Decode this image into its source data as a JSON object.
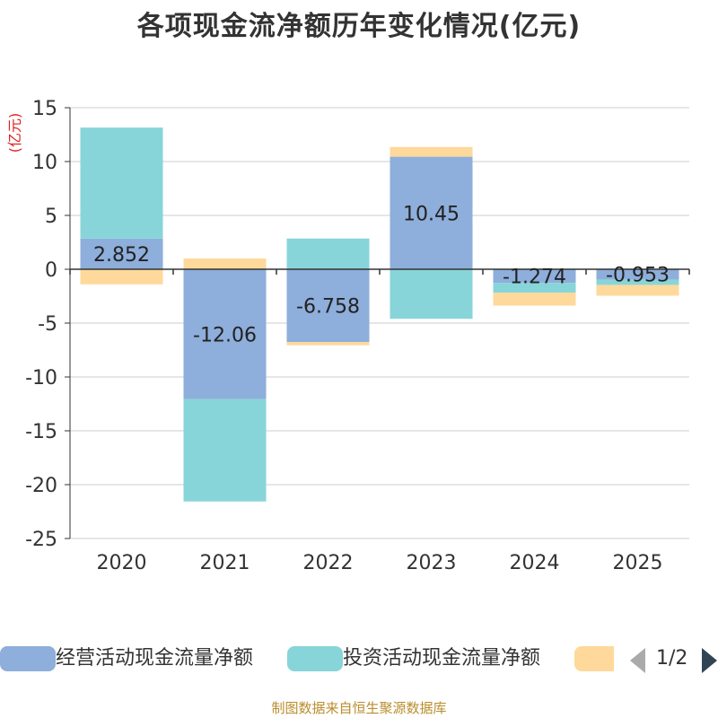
{
  "chart_data": {
    "type": "bar",
    "stacked": true,
    "title": "各项现金流净额历年变化情况(亿元)",
    "ylabel": "(亿元)",
    "xlabel": "",
    "ylim": [
      -25,
      15
    ],
    "yticks": [
      15,
      10,
      5,
      0,
      -5,
      -10,
      -15,
      -20,
      -25
    ],
    "categories": [
      "2020",
      "2021",
      "2022",
      "2023",
      "2024",
      "2025"
    ],
    "series": [
      {
        "name": "经营活动现金流量净额",
        "color": "#8eaedb",
        "values": [
          2.852,
          -12.06,
          -6.758,
          10.45,
          -1.274,
          -0.953
        ],
        "labels": [
          "2.852",
          "-12.06",
          "-6.758",
          "10.45",
          "-1.274",
          "-0.953"
        ]
      },
      {
        "name": "投资活动现金流量净额",
        "color": "#87d5d9",
        "values": [
          10.3,
          -9.5,
          2.85,
          -4.6,
          -0.9,
          -0.5
        ]
      },
      {
        "name": "",
        "color": "#fed99b",
        "values": [
          -1.4,
          1.0,
          -0.3,
          0.9,
          -1.2,
          -1.0
        ]
      }
    ],
    "legend_position": "bottom",
    "grid": true
  },
  "legend": {
    "items": [
      {
        "label": "经营活动现金流量净额",
        "color": "#8eaedb"
      },
      {
        "label": "投资活动现金流量净额",
        "color": "#87d5d9"
      },
      {
        "label": "",
        "color": "#fed99b"
      }
    ],
    "page": "1/2"
  },
  "footer": "制图数据来自恒生聚源数据库"
}
